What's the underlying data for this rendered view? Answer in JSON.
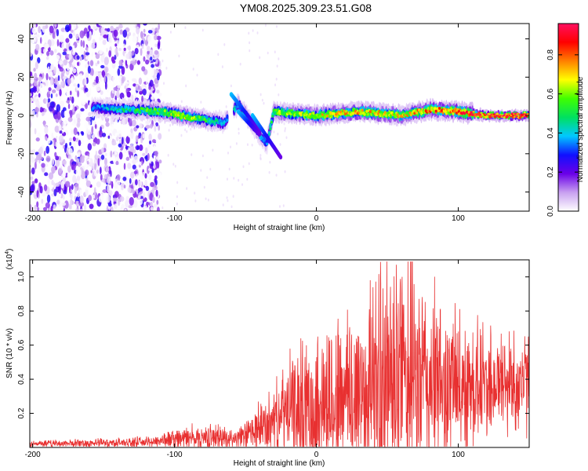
{
  "title": "YM08.2025.309.23.51.G08",
  "chart_data": [
    {
      "type": "heatmap",
      "xlabel": "Height of straight line (km)",
      "ylabel": "Frequency (Hz)",
      "xlim": [
        -202,
        150
      ],
      "ylim": [
        -50,
        48
      ],
      "x_ticks": [
        -200,
        -100,
        0,
        100
      ],
      "y_ticks": [
        -40,
        -20,
        0,
        20,
        40
      ],
      "grid": false,
      "colorbar": {
        "label": "Normalized spectral amplitude",
        "range": [
          0,
          0.96
        ],
        "ticks": [
          0.0,
          0.2,
          0.4,
          0.6,
          0.8
        ],
        "colormap": [
          "#ffffff",
          "#c8a0f0",
          "#6a00e8",
          "#1010ff",
          "#00c8ff",
          "#00e060",
          "#40ff00",
          "#ffff00",
          "#ff8000",
          "#ff0000",
          "#ff1060"
        ]
      },
      "ridge": [
        {
          "x": -155,
          "f": 4,
          "amp": 0.35
        },
        {
          "x": -130,
          "f": 3,
          "amp": 0.5
        },
        {
          "x": -110,
          "f": 2,
          "amp": 0.6
        },
        {
          "x": -95,
          "f": 0,
          "amp": 0.7
        },
        {
          "x": -80,
          "f": -2,
          "amp": 0.55
        },
        {
          "x": -65,
          "f": -4,
          "amp": 0.4
        },
        {
          "x": -55,
          "f": 6,
          "amp": 0.45
        },
        {
          "x": -45,
          "f": -5,
          "amp": 0.5
        },
        {
          "x": -35,
          "f": -15,
          "amp": 0.35
        },
        {
          "x": -30,
          "f": 2,
          "amp": 0.6
        },
        {
          "x": 0,
          "f": 0,
          "amp": 0.7
        },
        {
          "x": 30,
          "f": 2,
          "amp": 0.75
        },
        {
          "x": 60,
          "f": 0,
          "amp": 0.7
        },
        {
          "x": 80,
          "f": 3,
          "amp": 0.8
        },
        {
          "x": 100,
          "f": 2,
          "amp": 0.85
        },
        {
          "x": 120,
          "f": 0,
          "amp": 0.92
        },
        {
          "x": 150,
          "f": 0,
          "amp": 0.96
        }
      ]
    },
    {
      "type": "line",
      "xlabel": "Height of straight line (km)",
      "ylabel": "SNR (10 * v/v)",
      "y_scale_label": "(x10",
      "y_scale_exponent": "4",
      "xlim": [
        -202,
        150
      ],
      "ylim": [
        0,
        1.1
      ],
      "x_ticks": [
        -200,
        -100,
        0,
        100
      ],
      "y_ticks": [
        0.2,
        0.4,
        0.6,
        0.8,
        1.0
      ],
      "grid": false,
      "color": "#e83030",
      "envelope": [
        {
          "x": -202,
          "mean": 0.02,
          "spread": 0.02
        },
        {
          "x": -120,
          "mean": 0.03,
          "spread": 0.03
        },
        {
          "x": -100,
          "mean": 0.05,
          "spread": 0.06
        },
        {
          "x": -70,
          "mean": 0.06,
          "spread": 0.08
        },
        {
          "x": -55,
          "mean": 0.05,
          "spread": 0.06
        },
        {
          "x": -30,
          "mean": 0.15,
          "spread": 0.2
        },
        {
          "x": -20,
          "mean": 0.22,
          "spread": 0.3
        },
        {
          "x": 0,
          "mean": 0.25,
          "spread": 0.45
        },
        {
          "x": 30,
          "mean": 0.32,
          "spread": 0.6
        },
        {
          "x": 50,
          "mean": 0.38,
          "spread": 0.75
        },
        {
          "x": 65,
          "mean": 0.4,
          "spread": 0.72
        },
        {
          "x": 90,
          "mean": 0.35,
          "spread": 0.5
        },
        {
          "x": 120,
          "mean": 0.38,
          "spread": 0.35
        },
        {
          "x": 150,
          "mean": 0.38,
          "spread": 0.3
        }
      ]
    }
  ]
}
